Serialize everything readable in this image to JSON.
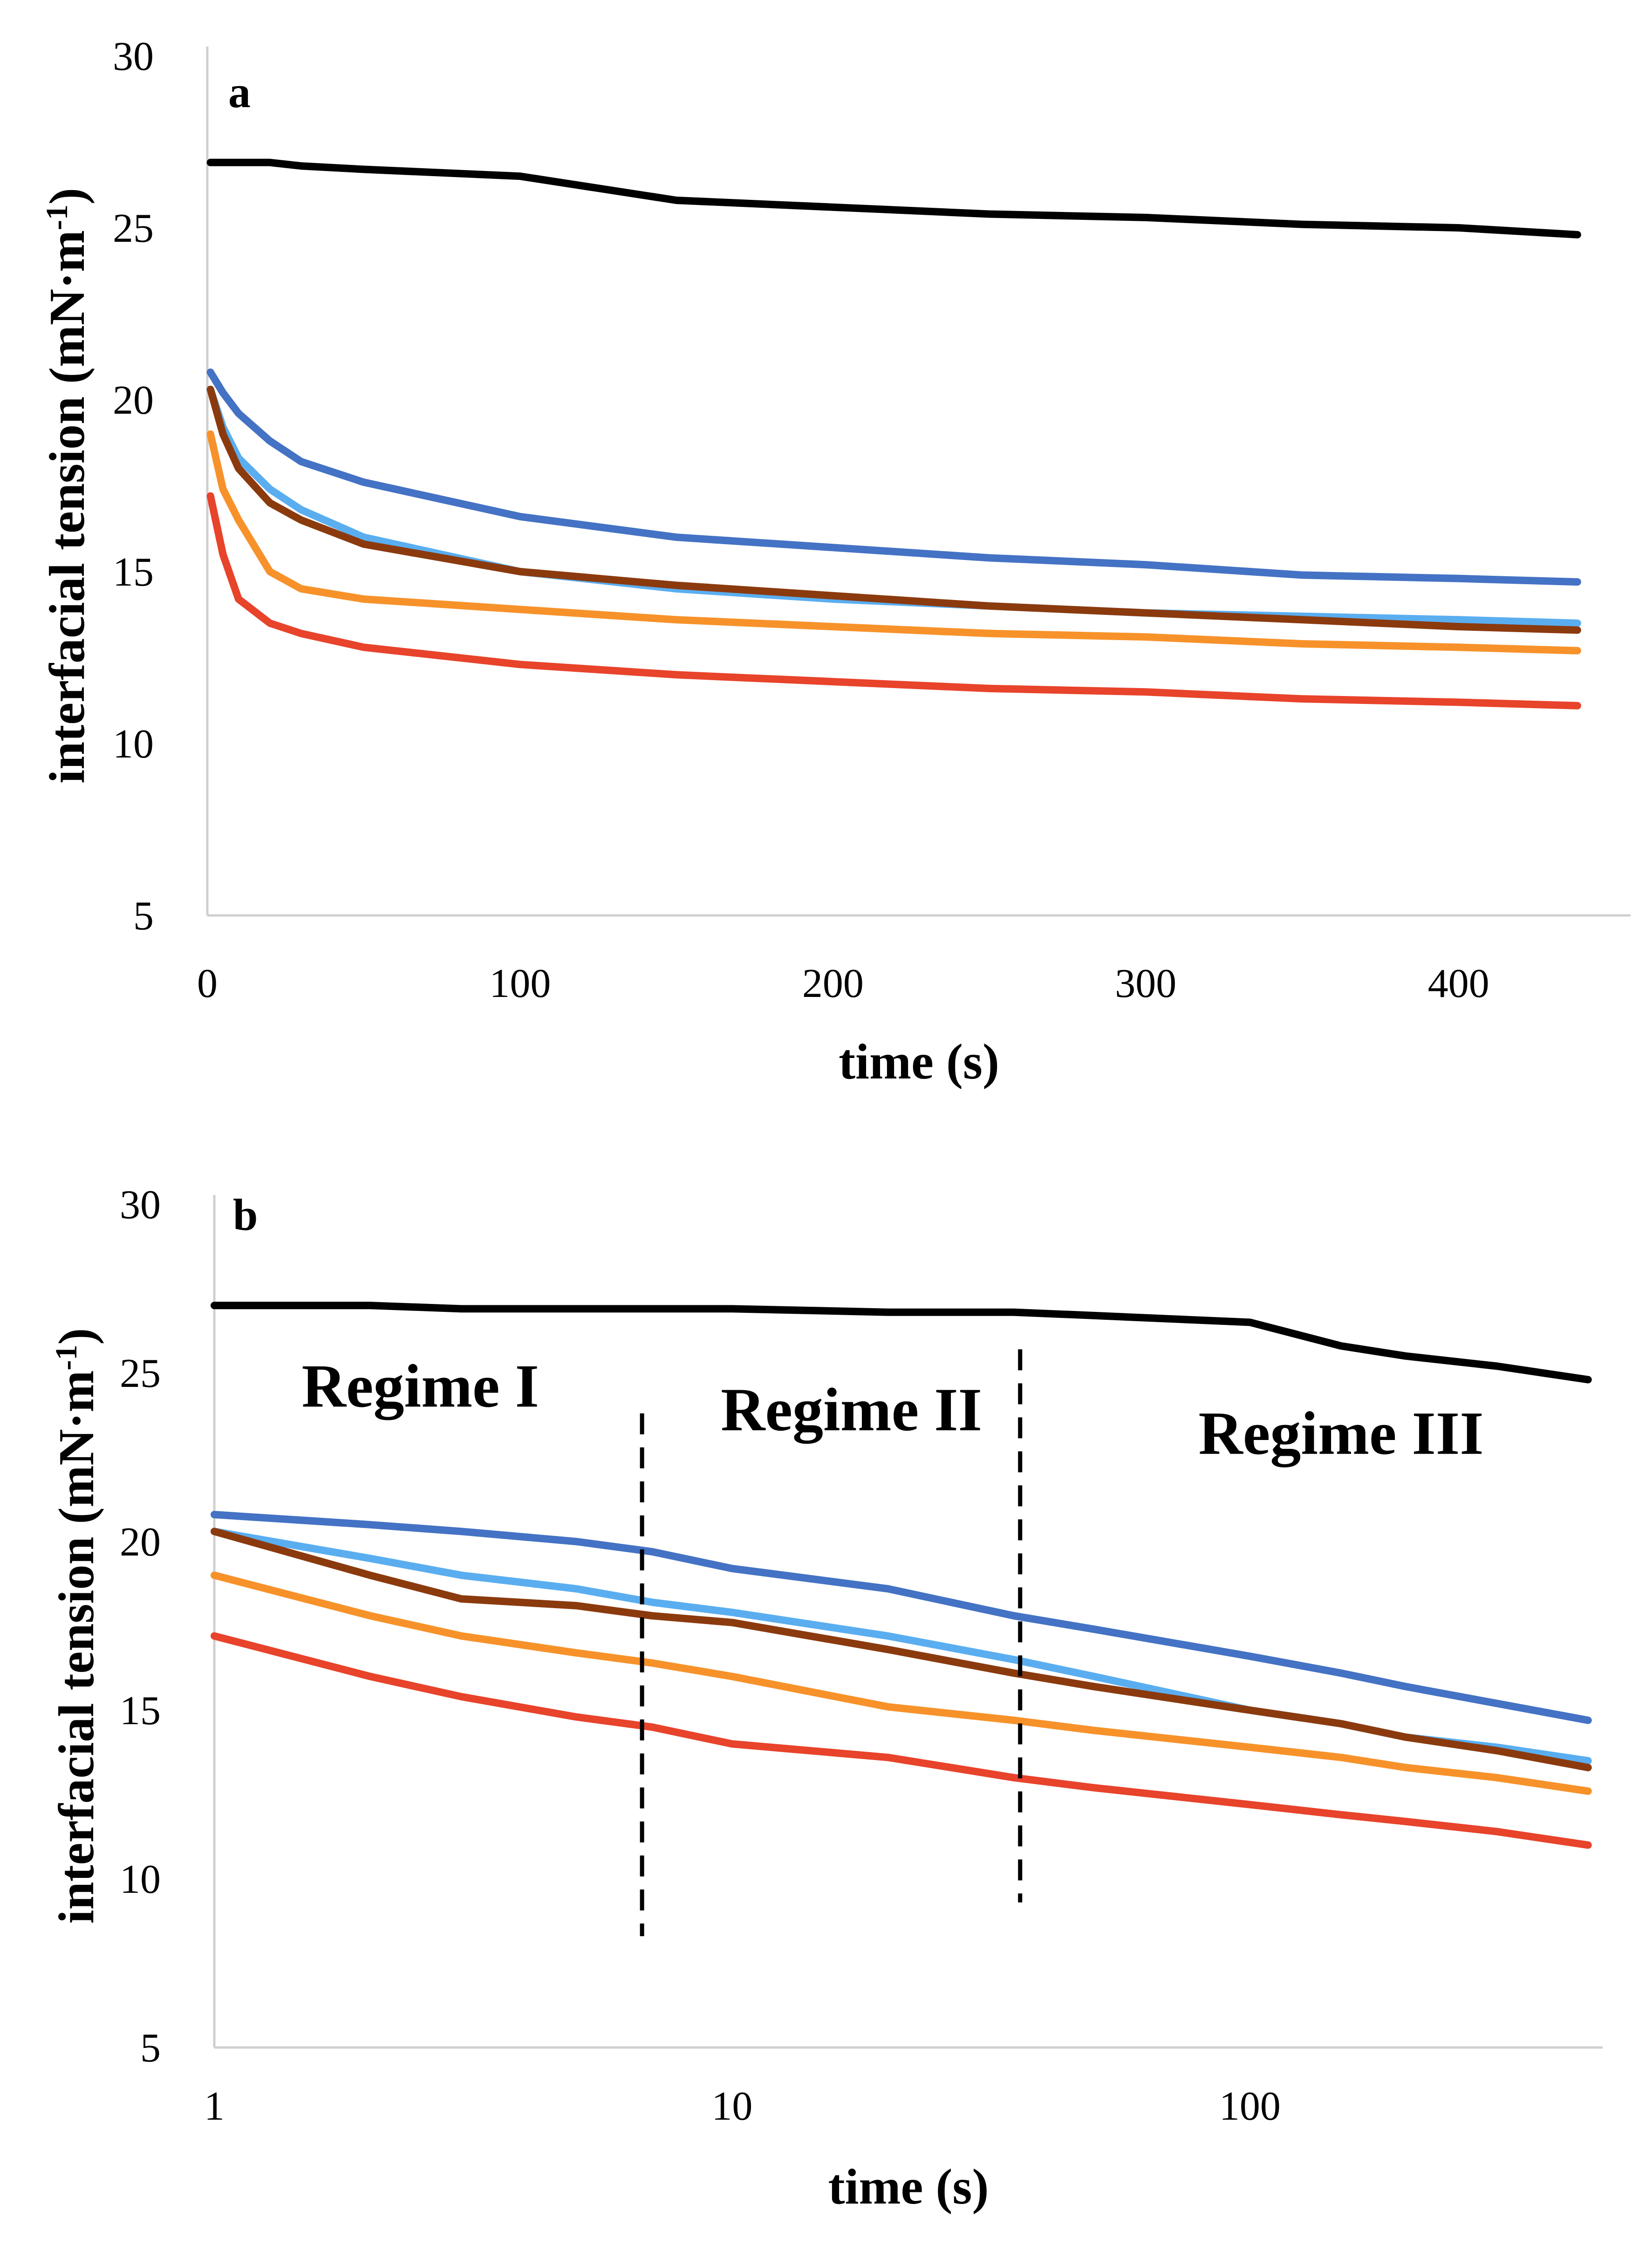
{
  "chart_data": [
    {
      "type": "line",
      "panel_label": "a",
      "xlabel": "time (s)",
      "ylabel": "interfacial tension (mN·m",
      "ylabel_sup": "-1",
      "ylabel_close": ")",
      "xscale": "linear",
      "xlim": [
        0,
        455
      ],
      "ylim": [
        5,
        30
      ],
      "xticks": [
        0,
        100,
        200,
        300,
        400
      ],
      "yticks": [
        5,
        10,
        15,
        20,
        25,
        30
      ],
      "grid": false,
      "x": [
        1,
        5,
        10,
        20,
        30,
        50,
        100,
        150,
        200,
        250,
        300,
        350,
        400,
        438
      ],
      "series": [
        {
          "color": "#000000",
          "values": [
            26.9,
            26.9,
            26.9,
            26.9,
            26.8,
            26.7,
            26.5,
            25.8,
            25.6,
            25.4,
            25.3,
            25.1,
            25.0,
            24.8
          ]
        },
        {
          "color": "#4472c4",
          "values": [
            20.8,
            20.2,
            19.6,
            18.8,
            18.2,
            17.6,
            16.6,
            16.0,
            15.7,
            15.4,
            15.2,
            14.9,
            14.8,
            14.7
          ]
        },
        {
          "color": "#5aaef0",
          "values": [
            20.3,
            19.2,
            18.3,
            17.4,
            16.8,
            16.0,
            15.0,
            14.5,
            14.2,
            14.0,
            13.8,
            13.7,
            13.6,
            13.5
          ]
        },
        {
          "color": "#8b3a0e",
          "values": [
            20.3,
            19.0,
            18.0,
            17.0,
            16.5,
            15.8,
            15.0,
            14.6,
            14.3,
            14.0,
            13.8,
            13.6,
            13.4,
            13.3
          ]
        },
        {
          "color": "#f7922a",
          "values": [
            19.0,
            17.4,
            16.5,
            15.0,
            14.5,
            14.2,
            13.9,
            13.6,
            13.4,
            13.2,
            13.1,
            12.9,
            12.8,
            12.7
          ]
        },
        {
          "color": "#e8432b",
          "values": [
            17.2,
            15.5,
            14.2,
            13.5,
            13.2,
            12.8,
            12.3,
            12.0,
            11.8,
            11.6,
            11.5,
            11.3,
            11.2,
            11.1
          ]
        }
      ]
    },
    {
      "type": "line",
      "panel_label": "b",
      "xlabel": "time (s)",
      "ylabel": "interfacial tension (mN·m",
      "ylabel_sup": "-1",
      "ylabel_close": ")",
      "xscale": "log",
      "xlim": [
        1,
        480
      ],
      "ylim": [
        5,
        30
      ],
      "xticks": [
        1,
        10,
        100
      ],
      "yticks": [
        5,
        10,
        15,
        20,
        25,
        30
      ],
      "grid": false,
      "x": [
        1,
        2,
        3,
        5,
        7,
        10,
        20,
        35,
        50,
        100,
        150,
        200,
        300,
        450
      ],
      "series": [
        {
          "color": "#000000",
          "values": [
            27.0,
            27.0,
            26.9,
            26.9,
            26.9,
            26.9,
            26.8,
            26.8,
            26.7,
            26.5,
            25.8,
            25.5,
            25.2,
            24.8
          ]
        },
        {
          "color": "#4472c4",
          "values": [
            20.8,
            20.5,
            20.3,
            20.0,
            19.7,
            19.2,
            18.6,
            17.8,
            17.4,
            16.6,
            16.1,
            15.7,
            15.2,
            14.7
          ]
        },
        {
          "color": "#5aaef0",
          "values": [
            20.3,
            19.5,
            19.0,
            18.6,
            18.2,
            17.9,
            17.2,
            16.5,
            16.0,
            15.0,
            14.6,
            14.2,
            13.9,
            13.5
          ]
        },
        {
          "color": "#8b3a0e",
          "values": [
            20.3,
            19.0,
            18.3,
            18.1,
            17.8,
            17.6,
            16.8,
            16.1,
            15.7,
            15.0,
            14.6,
            14.2,
            13.8,
            13.3
          ]
        },
        {
          "color": "#f7922a",
          "values": [
            19.0,
            17.8,
            17.2,
            16.7,
            16.4,
            16.0,
            15.1,
            14.7,
            14.4,
            13.9,
            13.6,
            13.3,
            13.0,
            12.6
          ]
        },
        {
          "color": "#e8432b",
          "values": [
            17.2,
            16.0,
            15.4,
            14.8,
            14.5,
            14.0,
            13.6,
            13.0,
            12.7,
            12.2,
            11.9,
            11.7,
            11.4,
            11.0
          ]
        }
      ],
      "annotations": [
        {
          "text": "Regime I",
          "x": 2.5,
          "y": 24.0
        },
        {
          "text": "Regime II",
          "x": 17,
          "y": 23.3
        },
        {
          "text": "Regime III",
          "x": 150,
          "y": 22.6
        }
      ],
      "dividers": [
        {
          "x": 6.7,
          "y_top": 23.8,
          "y_bottom": 8.3
        },
        {
          "x": 36,
          "y_top": 25.7,
          "y_bottom": 9.3
        }
      ]
    }
  ]
}
